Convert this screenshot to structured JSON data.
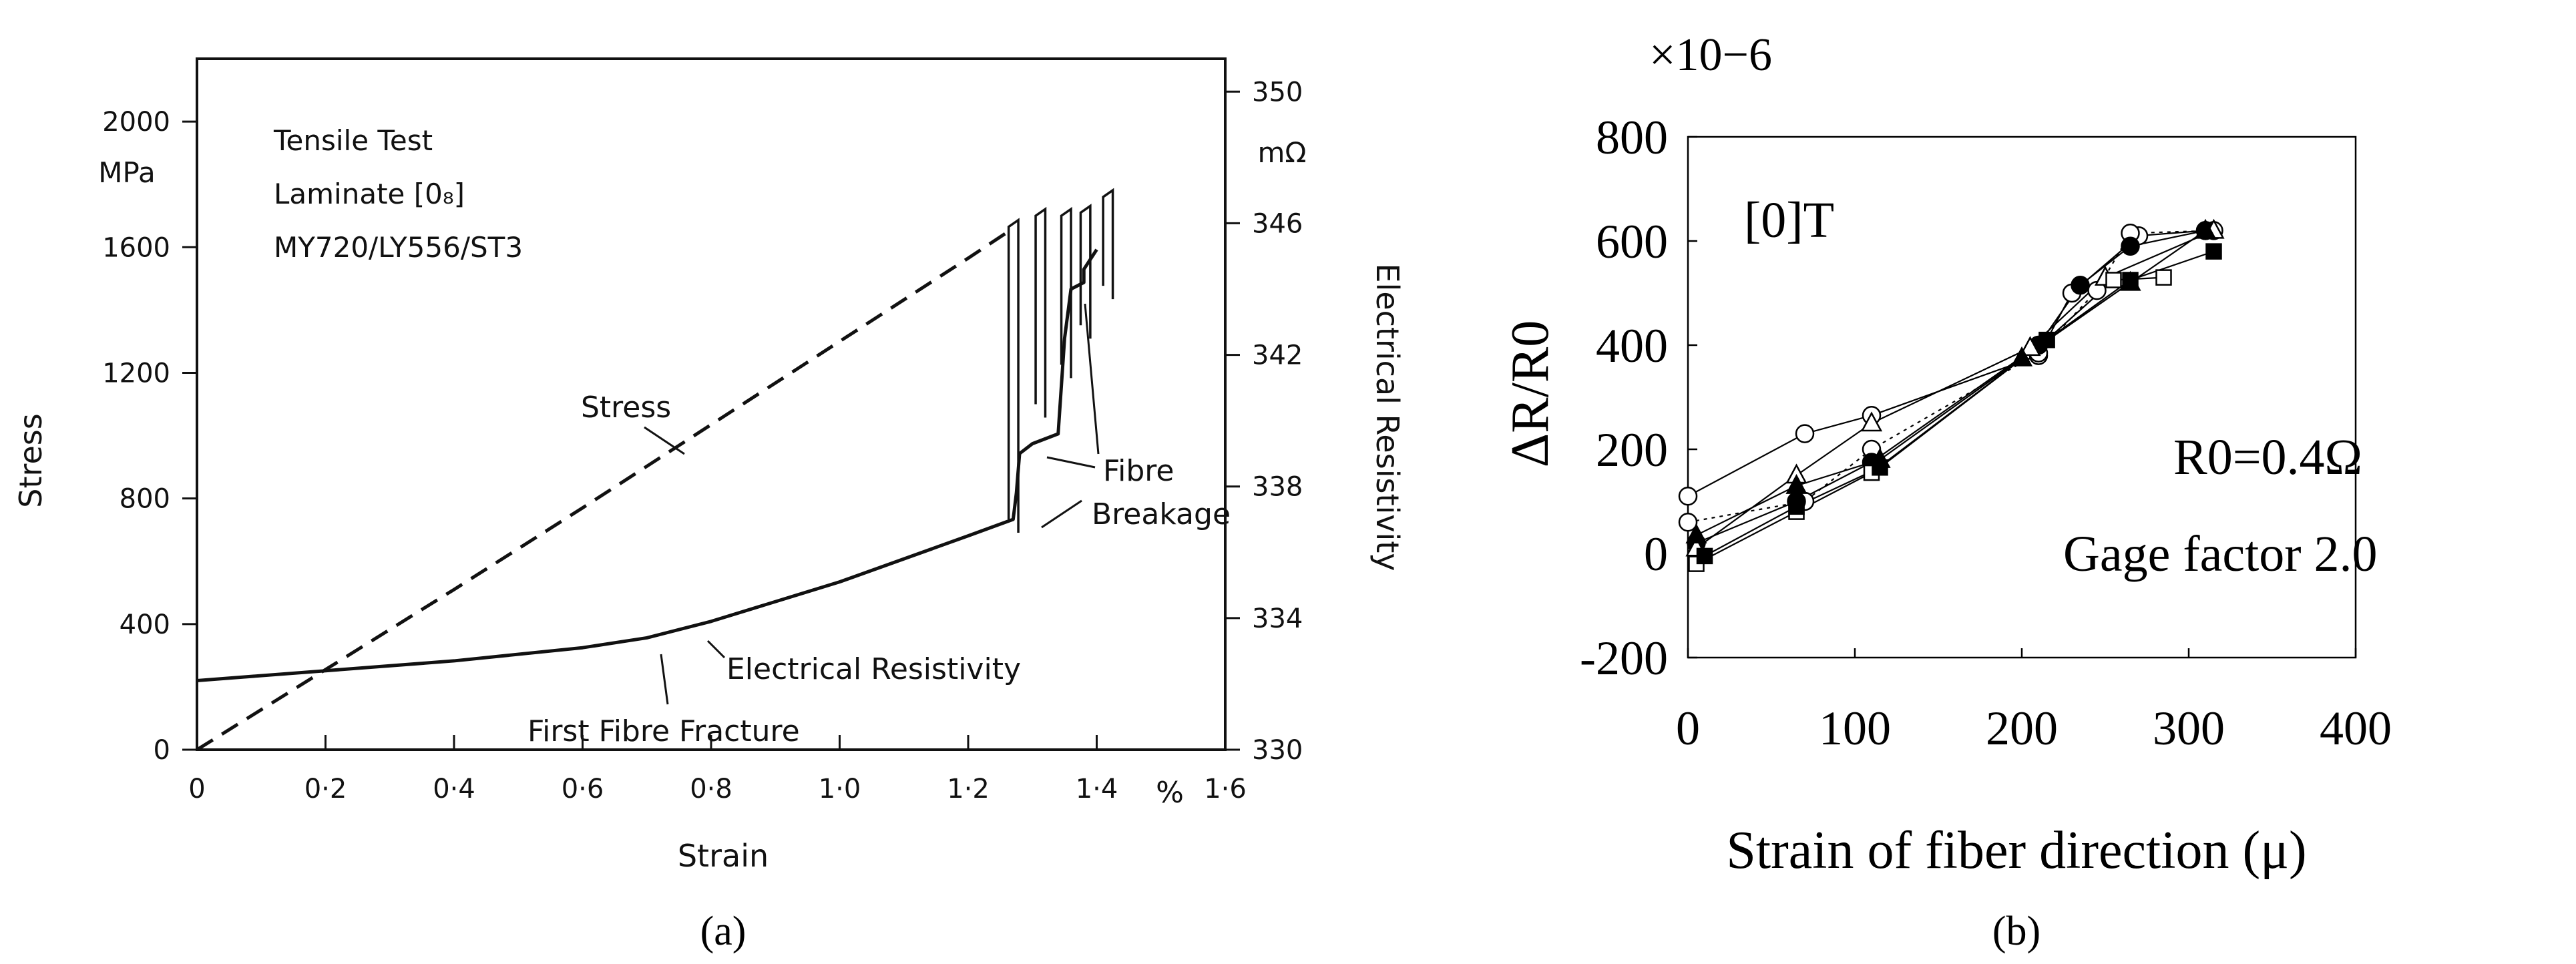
{
  "chart_data": [
    {
      "panel": "a",
      "type": "line",
      "caption": "(a)",
      "xlabel": "Strain",
      "ylabel": "Stress",
      "ylabel_unit": "MPa",
      "y2label": "Electrical Resistivity",
      "y2label_unit": "mΩ",
      "x_unit": "%",
      "xlim": [
        0,
        1.6
      ],
      "ylim": [
        0,
        2200
      ],
      "y2lim": [
        330,
        351
      ],
      "x_ticks": [
        0,
        0.2,
        0.4,
        0.6,
        0.8,
        1.0,
        1.2,
        1.4,
        1.6
      ],
      "x_tick_labels": [
        "0",
        "0·2",
        "0·4",
        "0·6",
        "0·8",
        "1·0",
        "1·2",
        "1·4",
        "1·6"
      ],
      "y_ticks": [
        0,
        400,
        800,
        1200,
        1600,
        2000
      ],
      "y_tick_labels": [
        "0",
        "400",
        "800",
        "1200",
        "1600",
        "2000"
      ],
      "y2_ticks": [
        330,
        334,
        338,
        342,
        346,
        350
      ],
      "y2_tick_labels": [
        "330",
        "334",
        "338",
        "342",
        "346",
        "350"
      ],
      "info_lines": [
        "Tensile Test",
        "Laminate [0₈]",
        "MY720/LY556/ST3"
      ],
      "annotations": {
        "stress": "Stress",
        "resistivity": "Electrical Resistivity",
        "first_fracture": "First Fibre Fracture",
        "fibre": "Fibre",
        "breakage": "Breakage"
      },
      "series": [
        {
          "name": "Stress",
          "style": "dashed",
          "axis": "left",
          "x": [
            0,
            0.2,
            0.4,
            0.6,
            0.8,
            1.0,
            1.2,
            1.27
          ],
          "y": [
            0,
            255,
            510,
            770,
            1035,
            1300,
            1565,
            1660
          ]
        },
        {
          "name": "Electrical Resistivity",
          "style": "solid",
          "axis": "right",
          "x": [
            0,
            0.2,
            0.4,
            0.6,
            0.7,
            0.8,
            1.0,
            1.2,
            1.27,
            1.275,
            1.28,
            1.3,
            1.34,
            1.35,
            1.36,
            1.38,
            1.38,
            1.4
          ],
          "y": [
            332.1,
            332.4,
            332.7,
            333.1,
            333.4,
            333.9,
            335.1,
            336.5,
            337.0,
            337.8,
            339.0,
            339.3,
            339.6,
            342.5,
            344.0,
            344.2,
            344.6,
            345.2
          ]
        }
      ],
      "spikes": [
        {
          "x1": 1.263,
          "x2": 1.278,
          "y_top": 1665
        },
        {
          "x1": 1.305,
          "x2": 1.32,
          "y_top": 1700
        },
        {
          "x1": 1.345,
          "x2": 1.36,
          "y_top": 1700
        },
        {
          "x1": 1.375,
          "x2": 1.39,
          "y_top": 1710
        },
        {
          "x1": 1.41,
          "x2": 1.425,
          "y_top": 1760
        }
      ]
    },
    {
      "panel": "b",
      "type": "scatter",
      "caption": "(b)",
      "xlabel": "Strain of fiber direction  (μ)",
      "ylabel": "ΔR/R0",
      "y_multiplier": "×10−6",
      "xlim": [
        0,
        400
      ],
      "ylim": [
        -200,
        800
      ],
      "x_ticks": [
        0,
        100,
        200,
        300,
        400
      ],
      "y_ticks": [
        -200,
        0,
        200,
        400,
        600,
        800
      ],
      "y_tick_labels": [
        "-200",
        "0",
        "200",
        "400",
        "600",
        "800"
      ],
      "annotation": "[0]T",
      "r0_label": "R0=0.4Ω",
      "gage_label": "Gage factor 2.0",
      "series": [
        {
          "marker": "open-circle",
          "line": "solid",
          "x": [
            0,
            70,
            110,
            210,
            230,
            270,
            310
          ],
          "y": [
            110,
            230,
            265,
            380,
            500,
            610,
            620
          ]
        },
        {
          "marker": "open-circle",
          "line": "dotted",
          "x": [
            0,
            70,
            110,
            210,
            245,
            265,
            315
          ],
          "y": [
            60,
            100,
            200,
            385,
            505,
            615,
            620
          ]
        },
        {
          "marker": "filled-circle",
          "line": "solid",
          "x": [
            5,
            65,
            110,
            210,
            235,
            265,
            310
          ],
          "y": [
            20,
            100,
            175,
            400,
            515,
            590,
            620
          ]
        },
        {
          "marker": "open-triangle",
          "line": "solid",
          "x": [
            5,
            65,
            110,
            205,
            250,
            315
          ],
          "y": [
            10,
            150,
            250,
            395,
            530,
            620
          ]
        },
        {
          "marker": "filled-triangle",
          "line": "solid",
          "x": [
            5,
            65,
            115,
            200,
            265,
            310
          ],
          "y": [
            35,
            130,
            180,
            375,
            520,
            620
          ]
        },
        {
          "marker": "open-square",
          "line": "solid",
          "x": [
            5,
            65,
            110,
            215,
            255,
            285
          ],
          "y": [
            -20,
            80,
            155,
            410,
            525,
            530
          ]
        },
        {
          "marker": "filled-square",
          "line": "solid",
          "x": [
            10,
            65,
            115,
            215,
            265,
            315
          ],
          "y": [
            -5,
            90,
            165,
            410,
            525,
            580
          ]
        }
      ]
    }
  ]
}
